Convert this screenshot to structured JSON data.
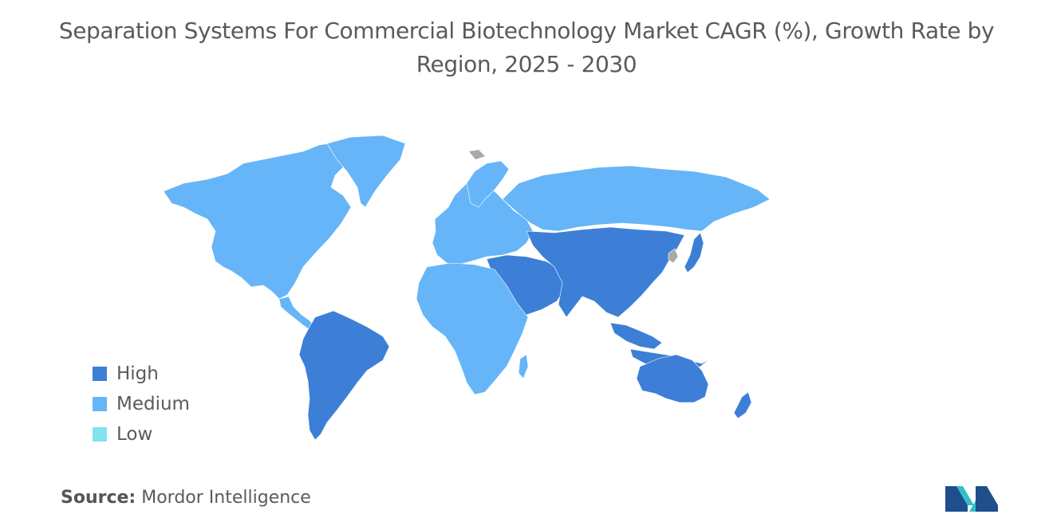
{
  "title": "Separation Systems For Commercial Biotechnology Market CAGR (%), Growth Rate by Region, 2025 - 2030",
  "legend": [
    {
      "label": "High",
      "color": "#3d7fd6"
    },
    {
      "label": "Medium",
      "color": "#66b5f8"
    },
    {
      "label": "Low",
      "color": "#80e3ee"
    }
  ],
  "colors": {
    "no_data": "#a9a9a9",
    "logo_dark": "#1f4e8c",
    "logo_light": "#31c0c8"
  },
  "regions": {
    "north_america": "Medium",
    "europe": "Medium",
    "russia": "Medium",
    "africa": "Medium",
    "south_america": "High",
    "middle_east": "High",
    "asia": "High",
    "australia": "High",
    "new_zealand": "High"
  },
  "source": {
    "label": "Source:",
    "value": "Mordor Intelligence"
  }
}
